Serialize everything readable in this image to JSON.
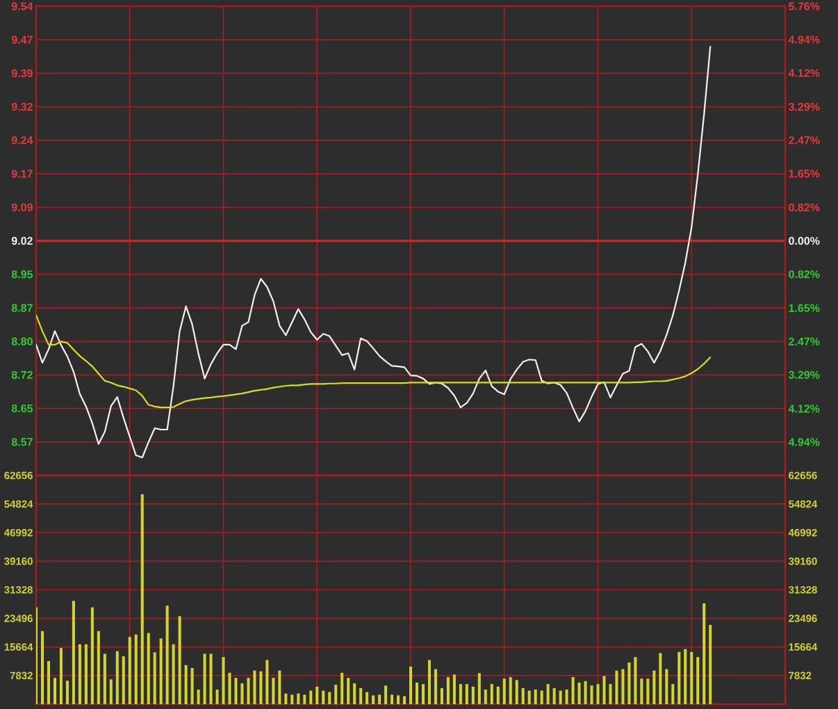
{
  "chart_data": [
    {
      "type": "line",
      "categories": [
        null,
        null,
        null,
        null,
        null,
        null,
        null,
        null,
        null,
        null,
        null,
        null,
        null,
        null,
        null,
        null,
        null,
        null,
        null,
        null,
        null,
        null,
        null,
        null,
        null,
        null,
        null,
        null,
        null,
        null,
        null,
        null,
        null,
        null,
        null,
        null,
        null,
        null,
        null,
        null,
        null,
        null,
        null,
        null,
        null,
        null,
        null,
        null,
        null,
        null,
        null,
        null,
        null,
        null,
        null,
        null,
        null,
        null,
        null,
        null,
        null,
        null,
        null,
        null,
        null,
        null,
        null,
        null,
        null,
        null,
        null,
        null,
        null,
        null,
        null,
        null,
        null,
        null,
        null,
        null,
        null,
        null,
        null,
        null,
        null,
        null,
        null,
        null,
        null,
        null,
        null,
        null,
        null,
        null,
        null,
        null,
        null,
        null,
        null,
        null,
        null,
        null,
        null,
        null,
        null,
        null,
        null,
        null,
        null,
        null,
        null,
        null,
        null,
        null,
        null,
        null,
        null,
        null,
        null,
        null,
        null
      ],
      "series": [
        {
          "color": "#f2f2f2",
          "values": [
            8.79,
            8.75,
            8.78,
            8.82,
            8.789,
            8.764,
            8.73,
            8.681,
            8.653,
            8.616,
            8.57,
            8.597,
            8.654,
            8.674,
            8.628,
            8.586,
            8.545,
            8.54,
            8.574,
            8.605,
            8.602,
            8.602,
            8.698,
            8.82,
            8.875,
            8.835,
            8.77,
            8.715,
            8.747,
            8.771,
            8.79,
            8.79,
            8.78,
            8.832,
            8.84,
            8.9,
            8.936,
            8.918,
            8.886,
            8.832,
            8.811,
            8.84,
            8.869,
            8.846,
            8.818,
            8.801,
            8.814,
            8.809,
            8.788,
            8.767,
            8.771,
            8.735,
            8.804,
            8.798,
            8.782,
            8.765,
            8.753,
            8.743,
            8.742,
            8.74,
            8.722,
            8.721,
            8.715,
            8.703,
            8.706,
            8.704,
            8.694,
            8.677,
            8.651,
            8.661,
            8.682,
            8.715,
            8.733,
            8.698,
            8.686,
            8.68,
            8.714,
            8.735,
            8.752,
            8.757,
            8.756,
            8.71,
            8.704,
            8.706,
            8.701,
            8.683,
            8.65,
            8.62,
            8.643,
            8.675,
            8.703,
            8.707,
            8.673,
            8.7,
            8.726,
            8.732,
            8.785,
            8.792,
            8.775,
            8.75,
            8.776,
            8.812,
            8.855,
            8.91,
            8.972,
            9.05,
            9.167,
            9.3,
            9.45,
            null,
            null,
            null,
            null,
            null,
            null,
            null,
            null,
            null,
            null,
            null,
            null
          ]
        },
        {
          "color": "#dcdc1e",
          "values": [
            8.855,
            8.82,
            8.79,
            8.79,
            8.797,
            8.794,
            8.779,
            8.765,
            8.754,
            8.742,
            8.726,
            8.71,
            8.706,
            8.7,
            8.697,
            8.693,
            8.689,
            8.677,
            8.657,
            8.653,
            8.651,
            8.651,
            8.652,
            8.659,
            8.665,
            8.668,
            8.67,
            8.672,
            8.673,
            8.675,
            8.676,
            8.678,
            8.68,
            8.682,
            8.685,
            8.688,
            8.69,
            8.692,
            8.695,
            8.697,
            8.699,
            8.7,
            8.7,
            8.702,
            8.703,
            8.703,
            8.703,
            8.704,
            8.704,
            8.705,
            8.705,
            8.705,
            8.705,
            8.705,
            8.705,
            8.705,
            8.705,
            8.705,
            8.705,
            8.705,
            8.706,
            8.706,
            8.706,
            8.706,
            8.706,
            8.706,
            8.706,
            8.706,
            8.706,
            8.706,
            8.706,
            8.706,
            8.706,
            8.706,
            8.706,
            8.706,
            8.706,
            8.706,
            8.706,
            8.706,
            8.706,
            8.706,
            8.706,
            8.706,
            8.706,
            8.706,
            8.706,
            8.706,
            8.706,
            8.706,
            8.706,
            8.706,
            8.706,
            8.706,
            8.706,
            8.706,
            8.707,
            8.707,
            8.708,
            8.709,
            8.709,
            8.71,
            8.713,
            8.716,
            8.72,
            8.727,
            8.736,
            8.748,
            8.762,
            null,
            null,
            null,
            null,
            null,
            null,
            null,
            null,
            null,
            null,
            null,
            null
          ]
        }
      ],
      "ylim": [
        8.5004,
        9.5396
      ],
      "yticks": [
        {
          "value": 8.5746,
          "label": "8.57"
        },
        {
          "value": 8.6489,
          "label": "8.65"
        },
        {
          "value": 8.7231,
          "label": "8.72"
        },
        {
          "value": 8.7973,
          "label": "8.80"
        },
        {
          "value": 8.8715,
          "label": "8.87"
        },
        {
          "value": 8.9458,
          "label": "8.95"
        },
        9.02,
        {
          "value": 9.0942,
          "label": "9.09"
        },
        {
          "value": 9.1685,
          "label": "9.17"
        },
        {
          "value": 9.2427,
          "label": "9.24"
        },
        {
          "value": 9.3169,
          "label": "9.32"
        },
        {
          "value": 9.3911,
          "label": "9.39"
        },
        {
          "value": 9.4654,
          "label": "9.47"
        },
        {
          "value": 9.5396,
          "label": "9.54"
        }
      ],
      "y2lim": [
        -5.76,
        5.76
      ],
      "y2ticks": [
        {
          "value": -4.94,
          "label": "4.94%"
        },
        {
          "value": -4.12,
          "label": "4.12%"
        },
        {
          "value": -3.29,
          "label": "3.29%"
        },
        {
          "value": -2.47,
          "label": "2.47%"
        },
        {
          "value": -1.65,
          "label": "1.65%"
        },
        {
          "value": -0.82,
          "label": "0.82%"
        },
        {
          "value": 0,
          "label": "0.00%"
        },
        {
          "value": 0.82,
          "label": "0.82%"
        },
        {
          "value": 1.65,
          "label": "1.65%"
        },
        {
          "value": 2.47,
          "label": "2.47%"
        },
        {
          "value": 3.29,
          "label": "3.29%"
        },
        {
          "value": 4.12,
          "label": "4.12%"
        },
        {
          "value": 4.94,
          "label": "4.94%"
        },
        {
          "value": 5.76,
          "label": "5.76%"
        }
      ],
      "ref_lines": [
        {
          "axis": "y",
          "value": 9.02,
          "color": "#d42222"
        }
      ],
      "grid": true,
      "tick_labels": "y"
    },
    {
      "type": "bar",
      "categories": [
        null,
        null,
        null,
        null,
        null,
        null,
        null,
        null,
        null,
        null,
        null,
        null,
        null,
        null,
        null,
        null,
        null,
        null,
        null,
        null,
        null,
        null,
        null,
        null,
        null,
        null,
        null,
        null,
        null,
        null,
        null,
        null,
        null,
        null,
        null,
        null,
        null,
        null,
        null,
        null,
        null,
        null,
        null,
        null,
        null,
        null,
        null,
        null,
        null,
        null,
        null,
        null,
        null,
        null,
        null,
        null,
        null,
        null,
        null,
        null,
        null,
        null,
        null,
        null,
        null,
        null,
        null,
        null,
        null,
        null,
        null,
        null,
        null,
        null,
        null,
        null,
        null,
        null,
        null,
        null,
        null,
        null,
        null,
        null,
        null,
        null,
        null,
        null,
        null,
        null,
        null,
        null,
        null,
        null,
        null,
        null,
        null,
        null,
        null,
        null,
        null,
        null,
        null,
        null,
        null,
        null,
        null,
        null,
        null,
        null,
        null,
        null,
        null,
        null,
        null,
        null,
        null,
        null,
        null,
        null,
        null
      ],
      "values": [
        26500,
        20000,
        11800,
        7200,
        15400,
        6400,
        28300,
        16400,
        16400,
        26500,
        20000,
        13800,
        6800,
        14500,
        13100,
        18400,
        19100,
        57500,
        19500,
        14200,
        18000,
        27000,
        16400,
        24100,
        10700,
        9900,
        4000,
        13800,
        13800,
        4000,
        12900,
        8600,
        7200,
        5700,
        7200,
        9200,
        9000,
        12100,
        7200,
        9200,
        2900,
        2600,
        2900,
        2600,
        3700,
        4800,
        3700,
        3300,
        5300,
        8600,
        7200,
        5700,
        4400,
        3300,
        2400,
        2600,
        5100,
        2600,
        2400,
        2200,
        10300,
        5900,
        5500,
        12100,
        9600,
        4400,
        7400,
        8100,
        5500,
        5500,
        4800,
        8500,
        4000,
        5500,
        4800,
        7000,
        7400,
        6600,
        4400,
        3700,
        4000,
        3700,
        5500,
        4400,
        3700,
        4000,
        7400,
        5900,
        6300,
        5100,
        5500,
        7700,
        5500,
        9200,
        9600,
        11400,
        12900,
        7000,
        7000,
        9200,
        14000,
        9600,
        5500,
        14300,
        15100,
        14300,
        12900,
        27600,
        21700,
        null,
        null,
        null,
        null,
        null,
        null,
        null,
        null,
        null,
        null,
        null,
        null
      ],
      "color": "#d4d42a",
      "ylim": [
        0,
        62656
      ],
      "yticks": [
        7832,
        15664,
        23496,
        31328,
        39160,
        46992,
        54824,
        62656
      ],
      "y2lim": [
        0,
        62656
      ],
      "y2ticks": [
        7832,
        15664,
        23496,
        31328,
        39160,
        46992,
        54824,
        62656
      ],
      "grid": true,
      "tick_labels": "y"
    }
  ]
}
